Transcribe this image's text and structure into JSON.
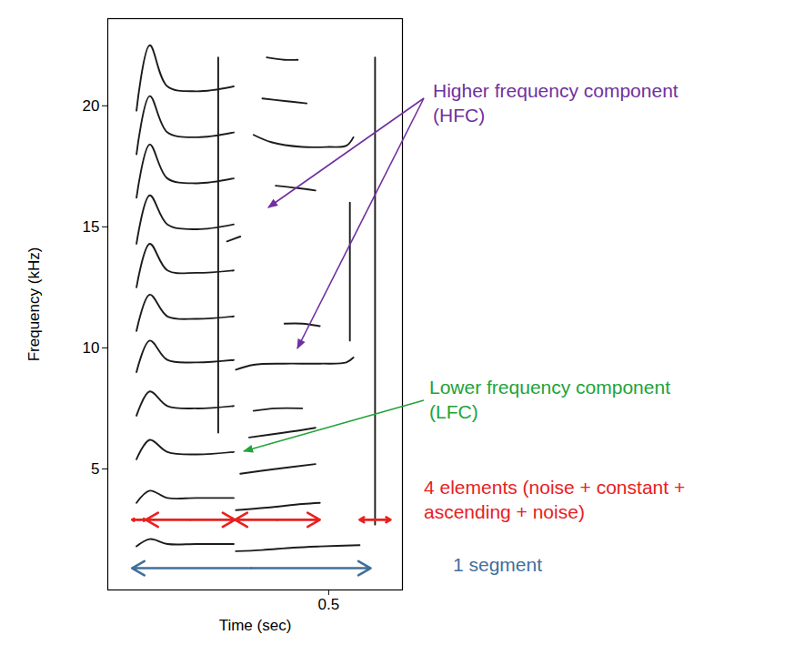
{
  "chart_data": {
    "type": "line",
    "xlabel": "Time (sec)",
    "ylabel": "Frequency (kHz)",
    "xlim": [
      0,
      0.667
    ],
    "ylim": [
      0,
      23.6
    ],
    "xticks": [
      0.5
    ],
    "yticks": [
      5,
      10,
      15,
      20
    ],
    "color": "#1c1c1c",
    "series": [
      {
        "x": [
          0.065,
          0.095,
          0.135,
          0.2,
          0.285
        ],
        "values": [
          1.8,
          2.1,
          1.9,
          1.9,
          1.9
        ]
      },
      {
        "x": [
          0.065,
          0.095,
          0.135,
          0.2,
          0.285
        ],
        "values": [
          3.6,
          4.1,
          3.8,
          3.8,
          3.8
        ]
      },
      {
        "x": [
          0.065,
          0.095,
          0.135,
          0.2,
          0.285
        ],
        "values": [
          5.4,
          6.2,
          5.7,
          5.6,
          5.7
        ]
      },
      {
        "x": [
          0.065,
          0.095,
          0.135,
          0.2,
          0.285
        ],
        "values": [
          7.2,
          8.2,
          7.6,
          7.5,
          7.6
        ]
      },
      {
        "x": [
          0.065,
          0.095,
          0.135,
          0.2,
          0.285
        ],
        "values": [
          9.0,
          10.3,
          9.5,
          9.4,
          9.5
        ]
      },
      {
        "x": [
          0.065,
          0.095,
          0.135,
          0.2,
          0.285
        ],
        "values": [
          10.7,
          12.2,
          11.3,
          11.2,
          11.3
        ]
      },
      {
        "x": [
          0.065,
          0.095,
          0.135,
          0.2,
          0.285
        ],
        "values": [
          12.5,
          14.3,
          13.2,
          13.1,
          13.2
        ]
      },
      {
        "x": [
          0.065,
          0.095,
          0.135,
          0.2,
          0.285
        ],
        "values": [
          14.3,
          16.3,
          15.1,
          14.9,
          15.1
        ]
      },
      {
        "x": [
          0.065,
          0.095,
          0.135,
          0.2,
          0.285
        ],
        "values": [
          16.2,
          18.4,
          17.0,
          16.8,
          17.0
        ]
      },
      {
        "x": [
          0.065,
          0.095,
          0.135,
          0.2,
          0.285
        ],
        "values": [
          18.0,
          20.4,
          18.9,
          18.7,
          18.9
        ]
      },
      {
        "x": [
          0.065,
          0.095,
          0.135,
          0.2,
          0.285
        ],
        "values": [
          19.8,
          22.5,
          20.8,
          20.6,
          20.8
        ]
      },
      {
        "x": [
          0.29,
          0.35,
          0.42,
          0.48,
          0.57
        ],
        "values": [
          1.6,
          1.65,
          1.75,
          1.8,
          1.85
        ]
      },
      {
        "x": [
          0.29,
          0.36,
          0.44,
          0.48
        ],
        "values": [
          3.3,
          3.4,
          3.55,
          3.6
        ]
      },
      {
        "x": [
          0.3,
          0.38,
          0.47
        ],
        "values": [
          4.8,
          5.0,
          5.2
        ]
      },
      {
        "x": [
          0.32,
          0.4,
          0.47
        ],
        "values": [
          6.3,
          6.5,
          6.7
        ]
      },
      {
        "x": [
          0.33,
          0.38,
          0.44
        ],
        "values": [
          7.4,
          7.5,
          7.5
        ]
      },
      {
        "x": [
          0.29,
          0.33,
          0.4,
          0.48,
          0.54,
          0.556
        ],
        "values": [
          9.1,
          9.3,
          9.35,
          9.35,
          9.4,
          9.6
        ]
      },
      {
        "x": [
          0.4,
          0.44,
          0.48
        ],
        "values": [
          11.0,
          11.0,
          10.9
        ]
      },
      {
        "x": [
          0.27,
          0.3
        ],
        "values": [
          14.4,
          14.6
        ]
      },
      {
        "x": [
          0.38,
          0.43,
          0.47
        ],
        "values": [
          16.7,
          16.6,
          16.5
        ]
      },
      {
        "x": [
          0.33,
          0.37,
          0.44,
          0.5,
          0.54,
          0.556
        ],
        "values": [
          18.8,
          18.5,
          18.3,
          18.3,
          18.35,
          18.7
        ]
      },
      {
        "x": [
          0.35,
          0.4,
          0.45
        ],
        "values": [
          20.3,
          20.2,
          20.1
        ]
      },
      {
        "x": [
          0.36,
          0.4,
          0.43
        ],
        "values": [
          22.0,
          21.9,
          21.9
        ]
      },
      {
        "x": [
          0.25,
          0.25
        ],
        "values": [
          6.5,
          22.0
        ]
      },
      {
        "x": [
          0.548,
          0.548
        ],
        "values": [
          10.3,
          16.0
        ]
      },
      {
        "x": [
          0.605,
          0.605
        ],
        "values": [
          2.7,
          22.0
        ]
      }
    ],
    "annotations": [
      {
        "text": [
          "Higher frequency component",
          "(HFC)"
        ],
        "color": "#7030a0"
      },
      {
        "text": [
          "Lower frequency component",
          "(LFC)"
        ],
        "color": "#22a33a"
      }
    ],
    "spans": [
      {
        "text": [
          "4 elements (noise + constant +",
          "ascending + noise)"
        ],
        "color": "#e8211f",
        "freq": 2.9,
        "intervals": [
          [
            0.055,
            0.086
          ],
          [
            0.086,
            0.288
          ],
          [
            0.288,
            0.48
          ],
          [
            0.57,
            0.64
          ]
        ]
      },
      {
        "text": [
          "1 segment"
        ],
        "color": "#41709c",
        "freq": 0.9,
        "intervals": [
          [
            0.055,
            0.595
          ]
        ]
      }
    ]
  }
}
